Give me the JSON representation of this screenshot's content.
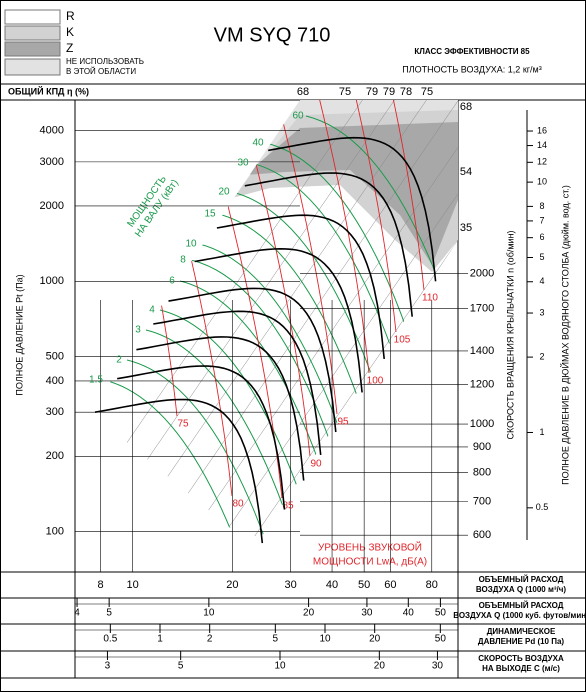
{
  "legend": [
    {
      "lines": [
        "R"
      ],
      "color": "#ffffff"
    },
    {
      "lines": [
        "K"
      ],
      "color": "#d2d2d2"
    },
    {
      "lines": [
        "Z"
      ],
      "color": "#a8a8a8"
    },
    {
      "lines": [
        "НЕ ИСПОЛЬЗОВАТЬ",
        "В ЭТОЙ ОБЛАСТИ"
      ],
      "color": "#e2e2e2"
    }
  ],
  "chart_data": {
    "type": "fan-performance",
    "title": "VM SYQ 710",
    "efficiency_class": "КЛАСС ЭФФЕКТИВНОСТИ 85",
    "air_density": "ПЛОТНОСТЬ ВОЗДУХА: 1,2 кг/м³",
    "efficiency": {
      "label": "ОБЩИЙ КПД η (%)",
      "top_values": [
        68,
        75,
        79,
        79,
        78,
        75
      ],
      "side_values": [
        68,
        54,
        35
      ]
    },
    "y_label": "ПОЛНОЕ ДАВЛЕНИЕ Pt (Па)",
    "y_log": true,
    "ylim": [
      69,
      5300
    ],
    "yticks": [
      100,
      200,
      300,
      400,
      500,
      1000,
      2000,
      3000,
      4000
    ],
    "x_log": true,
    "xlim": [
      6.7,
      96
    ],
    "xticks": [
      8,
      10,
      20,
      30,
      40,
      50,
      60,
      80
    ],
    "x_label": [
      "ОБЪЕМНЫЙ РАСХОД",
      "ВОЗДУХА Q (1000 м³/ч)"
    ],
    "secondary_x_scales": [
      {
        "label": [
          "ОБЪЕМНЫЙ РАСХОД",
          "ВОЗДУХА Q (1000 куб. футов/мин)"
        ],
        "ticks": [
          4,
          5,
          10,
          20,
          30,
          40,
          50
        ]
      },
      {
        "label": [
          "ДИНАМИЧЕСКОЕ",
          "ДАВЛЕНИЕ Pd (10 Па)"
        ],
        "ticks": [
          0.5,
          1,
          2,
          5,
          10,
          20,
          50
        ]
      },
      {
        "label": [
          "СКОРОСТЬ ВОЗДУХА",
          "НА ВЫХОДЕ C (м/с)"
        ],
        "ticks": [
          3,
          5,
          10,
          20,
          30
        ]
      }
    ],
    "speed_axis": {
      "label": "СКОРОСТЬ ВРАЩЕНИЯ КРЫЛЬЧАТКИ n (об/мин)",
      "ticks": [
        600,
        700,
        800,
        900,
        1000,
        1200,
        1400,
        1700,
        2000
      ]
    },
    "y2_label": "ПОЛНОЕ ДАВЛЕНИЕ В ДЮЙМАХ ВОДЯНОГО СТОЛБА (дюйм. вод. ст.)",
    "y2ticks": [
      0.5,
      1,
      2,
      3,
      4,
      5,
      6,
      7,
      8,
      10,
      12,
      14,
      16
    ],
    "power": {
      "label": [
        "МОЩНОСТЬ",
        "НА ВАЛУ (кВт)"
      ],
      "values": [
        60,
        40,
        30,
        20,
        15,
        10,
        8,
        6,
        4,
        3,
        2,
        1.5
      ],
      "color": "#1a9a4a"
    },
    "noise": {
      "label": [
        "УРОВЕНЬ ЗВУКОВОЙ",
        "МОЩНОСТИ LwA, дБ(A)"
      ],
      "values": [
        110,
        105,
        100,
        95,
        90,
        85,
        80,
        75
      ],
      "color": "#e0252b"
    }
  }
}
